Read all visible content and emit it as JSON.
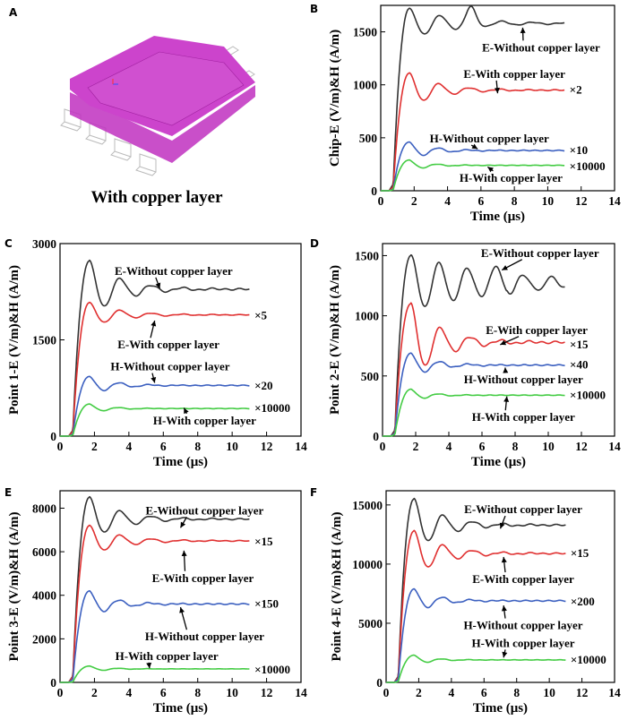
{
  "panel_a": {
    "label": "A",
    "caption": "With copper layer",
    "colors": {
      "body": "#cc33cc",
      "body_top": "#b82db8",
      "pins": "#bbbbbb"
    }
  },
  "chart_data": [
    {
      "id": "B",
      "type": "line",
      "label": "B",
      "xlabel": "Time (μs)",
      "ylabel": "Chip-E (V/m)&H (A/m)",
      "xlim": [
        0,
        14
      ],
      "ylim": [
        0,
        1750
      ],
      "xticks": [
        0,
        2,
        4,
        6,
        8,
        10,
        12,
        14
      ],
      "yticks": [
        0,
        500,
        1000,
        1500
      ],
      "series": [
        {
          "color": "#333333",
          "final": 1580,
          "peak": 1720,
          "trough": 1150,
          "pattern": "E1"
        },
        {
          "color": "#e03030",
          "final": 950,
          "peak": 1110,
          "trough": 740,
          "pattern": "E"
        },
        {
          "color": "#3c60c0",
          "final": 380,
          "peak": 460,
          "trough": 300,
          "pattern": "H"
        },
        {
          "color": "#44cc44",
          "final": 240,
          "peak": 290,
          "trough": 200,
          "pattern": "Hs"
        }
      ],
      "annotations": [
        {
          "text": "E-Without copper layer",
          "tx": 9.6,
          "ty": 1350,
          "ax": 8.5,
          "ay": 1540
        },
        {
          "text": "E-With copper layer",
          "tx": 8.0,
          "ty": 1100,
          "ax": 7.0,
          "ay": 920
        },
        {
          "text": "×2",
          "tx": 11.3,
          "ty": 950
        },
        {
          "text": "H-Without copper layer",
          "tx": 6.5,
          "ty": 490,
          "ax": 5.8,
          "ay": 395
        },
        {
          "text": "×10",
          "tx": 11.3,
          "ty": 380
        },
        {
          "text": "×10000",
          "tx": 11.3,
          "ty": 230
        },
        {
          "text": "H-With copper layer",
          "tx": 7.8,
          "ty": 120,
          "ax": 6.4,
          "ay": 225
        }
      ]
    },
    {
      "id": "C",
      "type": "line",
      "label": "C",
      "xlabel": "Time (μs)",
      "ylabel": "Point 1-E (V/m)&H (A/m)",
      "xlim": [
        0,
        14
      ],
      "ylim": [
        0,
        3000
      ],
      "xticks": [
        0,
        2,
        4,
        6,
        8,
        10,
        12,
        14
      ],
      "yticks": [
        0,
        1500,
        3000
      ],
      "series": [
        {
          "color": "#333333",
          "final": 2290,
          "peak": 2730,
          "trough": 1800,
          "pattern": "E"
        },
        {
          "color": "#e03030",
          "final": 1890,
          "peak": 2080,
          "trough": 1420,
          "pattern": "E"
        },
        {
          "color": "#3c60c0",
          "final": 790,
          "peak": 930,
          "trough": 600,
          "pattern": "H"
        },
        {
          "color": "#44cc44",
          "final": 430,
          "peak": 500,
          "trough": 360,
          "pattern": "Hs"
        }
      ],
      "annotations": [
        {
          "text": "E-Without copper layer",
          "tx": 6.6,
          "ty": 2570,
          "ax": 5.8,
          "ay": 2300
        },
        {
          "text": "×5",
          "tx": 11.3,
          "ty": 1880
        },
        {
          "text": "E-With copper layer",
          "tx": 6.3,
          "ty": 1420,
          "ax": 5.5,
          "ay": 1800
        },
        {
          "text": "H-Without copper layer",
          "tx": 6.4,
          "ty": 1080,
          "ax": 5.5,
          "ay": 830
        },
        {
          "text": "×20",
          "tx": 11.3,
          "ty": 780
        },
        {
          "text": "×10000",
          "tx": 11.3,
          "ty": 430
        },
        {
          "text": "H-With copper layer",
          "tx": 8.4,
          "ty": 240,
          "ax": 7.2,
          "ay": 440
        }
      ]
    },
    {
      "id": "D",
      "type": "line",
      "label": "D",
      "xlabel": "Time (μs)",
      "ylabel": "Point 2-E (V/m)&H (A/m)",
      "xlim": [
        0,
        14
      ],
      "ylim": [
        0,
        1600
      ],
      "xticks": [
        0,
        2,
        4,
        6,
        8,
        10,
        12,
        14
      ],
      "yticks": [
        0,
        500,
        1000,
        1500
      ],
      "series": [
        {
          "color": "#333333",
          "final": 1270,
          "peak": 1500,
          "trough": 800,
          "pattern": "D"
        },
        {
          "color": "#e03030",
          "final": 780,
          "peak": 1100,
          "trough": 620,
          "pattern": "E"
        },
        {
          "color": "#3c60c0",
          "final": 590,
          "peak": 690,
          "trough": 480,
          "pattern": "H"
        },
        {
          "color": "#44cc44",
          "final": 340,
          "peak": 390,
          "trough": 270,
          "pattern": "Hs"
        }
      ],
      "annotations": [
        {
          "text": "E-Without copper layer",
          "tx": 9.5,
          "ty": 1520,
          "ax": 7.2,
          "ay": 1380
        },
        {
          "text": "E-With copper layer",
          "tx": 9.3,
          "ty": 880,
          "ax": 7.1,
          "ay": 760
        },
        {
          "text": "×15",
          "tx": 11.3,
          "ty": 760
        },
        {
          "text": "×40",
          "tx": 11.3,
          "ty": 590
        },
        {
          "text": "H-Without copper layer",
          "tx": 8.5,
          "ty": 470,
          "ax": 7.4,
          "ay": 570
        },
        {
          "text": "×10000",
          "tx": 11.3,
          "ty": 340
        },
        {
          "text": "H-With copper layer",
          "tx": 8.5,
          "ty": 155,
          "ax": 7.5,
          "ay": 330
        }
      ]
    },
    {
      "id": "E",
      "type": "line",
      "label": "E",
      "xlabel": "Time (μs)",
      "ylabel": "Point 3-E (V/m)&H (A/m)",
      "xlim": [
        0,
        14
      ],
      "ylim": [
        0,
        8800
      ],
      "xticks": [
        0,
        2,
        4,
        6,
        8,
        10,
        12,
        14
      ],
      "yticks": [
        0,
        2000,
        4000,
        6000,
        8000
      ],
      "series": [
        {
          "color": "#333333",
          "final": 7500,
          "peak": 8500,
          "trough": 5600,
          "pattern": "E"
        },
        {
          "color": "#e03030",
          "final": 6500,
          "peak": 7200,
          "trough": 4800,
          "pattern": "E"
        },
        {
          "color": "#3c60c0",
          "final": 3600,
          "peak": 4200,
          "trough": 2800,
          "pattern": "H"
        },
        {
          "color": "#44cc44",
          "final": 620,
          "peak": 750,
          "trough": 480,
          "pattern": "Hs"
        }
      ],
      "annotations": [
        {
          "text": "E-Without copper layer",
          "tx": 8.4,
          "ty": 7880,
          "ax": 7.0,
          "ay": 7100
        },
        {
          "text": "×15",
          "tx": 11.3,
          "ty": 6450
        },
        {
          "text": "E-With copper layer",
          "tx": 8.3,
          "ty": 4780,
          "ax": 7.2,
          "ay": 6050
        },
        {
          "text": "×150",
          "tx": 11.3,
          "ty": 3600
        },
        {
          "text": "H-Without copper layer",
          "tx": 8.4,
          "ty": 2090,
          "ax": 7.0,
          "ay": 3450
        },
        {
          "text": "H-With copper layer",
          "tx": 6.2,
          "ty": 1200,
          "ax": 5.2,
          "ay": 650
        },
        {
          "text": "×10000",
          "tx": 11.3,
          "ty": 580
        }
      ]
    },
    {
      "id": "F",
      "type": "line",
      "label": "F",
      "xlabel": "Time (μs)",
      "ylabel": "Point 4-E (V/m)&H (A/m)",
      "xlim": [
        0,
        14
      ],
      "ylim": [
        0,
        16200
      ],
      "xticks": [
        0,
        2,
        4,
        6,
        8,
        10,
        12,
        14
      ],
      "yticks": [
        0,
        5000,
        10000,
        15000
      ],
      "series": [
        {
          "color": "#333333",
          "final": 13300,
          "peak": 15500,
          "trough": 11000,
          "pattern": "E"
        },
        {
          "color": "#e03030",
          "final": 10900,
          "peak": 12800,
          "trough": 9000,
          "pattern": "E"
        },
        {
          "color": "#3c60c0",
          "final": 6900,
          "peak": 7900,
          "trough": 5600,
          "pattern": "H"
        },
        {
          "color": "#44cc44",
          "final": 1900,
          "peak": 2300,
          "trough": 1450,
          "pattern": "Hs"
        }
      ],
      "annotations": [
        {
          "text": "E-Without copper layer",
          "tx": 8.4,
          "ty": 14600,
          "ax": 7.0,
          "ay": 13000
        },
        {
          "text": "×15",
          "tx": 11.3,
          "ty": 10900
        },
        {
          "text": "E-With copper layer",
          "tx": 8.4,
          "ty": 8700,
          "ax": 7.2,
          "ay": 10600
        },
        {
          "text": "×200",
          "tx": 11.3,
          "ty": 6800
        },
        {
          "text": "H-Without copper layer",
          "tx": 8.4,
          "ty": 4800,
          "ax": 7.2,
          "ay": 6500
        },
        {
          "text": "H-With copper layer",
          "tx": 8.4,
          "ty": 3300,
          "ax": 7.2,
          "ay": 2100
        },
        {
          "text": "×10000",
          "tx": 11.3,
          "ty": 1900
        }
      ]
    }
  ]
}
